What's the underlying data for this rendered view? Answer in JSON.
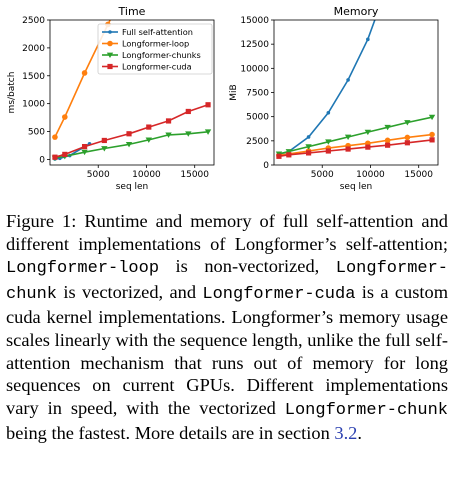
{
  "chart_data": [
    {
      "type": "line",
      "title": "Time",
      "xlabel": "seq len",
      "ylabel": "ms/batch",
      "xlim": [
        0,
        17000
      ],
      "ylim": [
        -100,
        2500
      ],
      "xticks": [
        5000,
        10000,
        15000
      ],
      "yticks": [
        0,
        500,
        1000,
        1500,
        2000,
        2500
      ],
      "legend_placement": "top-right",
      "series": [
        {
          "name": "Full self-attention",
          "color": "#1f77b4",
          "marker": "dot",
          "x": [
            512,
            1024,
            2048,
            4096
          ],
          "y": [
            8,
            20,
            70,
            280
          ]
        },
        {
          "name": "Longformer-loop",
          "color": "#ff7f0e",
          "marker": "circle",
          "x": [
            512,
            1536,
            3584,
            6000,
            6800
          ],
          "y": [
            400,
            760,
            1550,
            2420,
            2700
          ]
        },
        {
          "name": "Longformer-chunks",
          "color": "#2ca02c",
          "marker": "triangle-down",
          "x": [
            512,
            1536,
            3584,
            5632,
            8192,
            10240,
            12288,
            14336,
            16384
          ],
          "y": [
            25,
            55,
            130,
            195,
            270,
            350,
            440,
            460,
            495
          ]
        },
        {
          "name": "Longformer-cuda",
          "color": "#d62728",
          "marker": "square",
          "x": [
            512,
            1536,
            3584,
            5632,
            8192,
            10240,
            12288,
            14336,
            16384
          ],
          "y": [
            40,
            90,
            230,
            340,
            460,
            580,
            690,
            860,
            980
          ]
        }
      ]
    },
    {
      "type": "line",
      "title": "Memory",
      "xlabel": "seq len",
      "ylabel": "MiB",
      "xlim": [
        0,
        17000
      ],
      "ylim": [
        0,
        15000
      ],
      "xticks": [
        5000,
        10000,
        15000
      ],
      "yticks": [
        0,
        2500,
        5000,
        7500,
        10000,
        12500,
        15000
      ],
      "series": [
        {
          "name": "Full self-attention",
          "color": "#1f77b4",
          "marker": "dot",
          "x": [
            512,
            1536,
            3584,
            5632,
            7680,
            9728,
            11000
          ],
          "y": [
            1100,
            1400,
            2900,
            5400,
            8800,
            13000,
            16500
          ]
        },
        {
          "name": "Longformer-loop",
          "color": "#ff7f0e",
          "marker": "circle",
          "x": [
            512,
            1536,
            3584,
            5632,
            7680,
            9728,
            11776,
            13824,
            16384
          ],
          "y": [
            1000,
            1150,
            1450,
            1750,
            2000,
            2250,
            2550,
            2850,
            3150
          ]
        },
        {
          "name": "Longformer-chunks",
          "color": "#2ca02c",
          "marker": "triangle-down",
          "x": [
            512,
            1536,
            3584,
            5632,
            7680,
            9728,
            11776,
            13824,
            16384
          ],
          "y": [
            1150,
            1400,
            1900,
            2400,
            2900,
            3400,
            3900,
            4400,
            4950
          ]
        },
        {
          "name": "Longformer-cuda",
          "color": "#d62728",
          "marker": "square",
          "x": [
            512,
            1536,
            3584,
            5632,
            7680,
            9728,
            11776,
            13824,
            16384
          ],
          "y": [
            900,
            1050,
            1250,
            1450,
            1650,
            1850,
            2050,
            2300,
            2600
          ]
        }
      ]
    }
  ],
  "caption": {
    "p1": "Figure 1:  Runtime and memory of full self-attention and different implementations of Longformer’s self-attention; ",
    "loop": "Longformer-loop",
    "p2": " is non-vectorized, ",
    "chunk": "Longformer-chunk",
    "p3": " is vectorized, and ",
    "cuda": "Longformer-cuda",
    "p4": " is a custom cuda kernel implementations.  Longformer’s memory usage scales linearly with the sequence length, unlike the full self-attention mechanism that runs out of memory for long sequences on current GPUs.  Different implementations vary in speed, with the vectorized ",
    "chunk2": "Longformer-chunk",
    "p5": " being the fastest. More details are in section ",
    "ref": "3.2",
    "p6": "."
  }
}
